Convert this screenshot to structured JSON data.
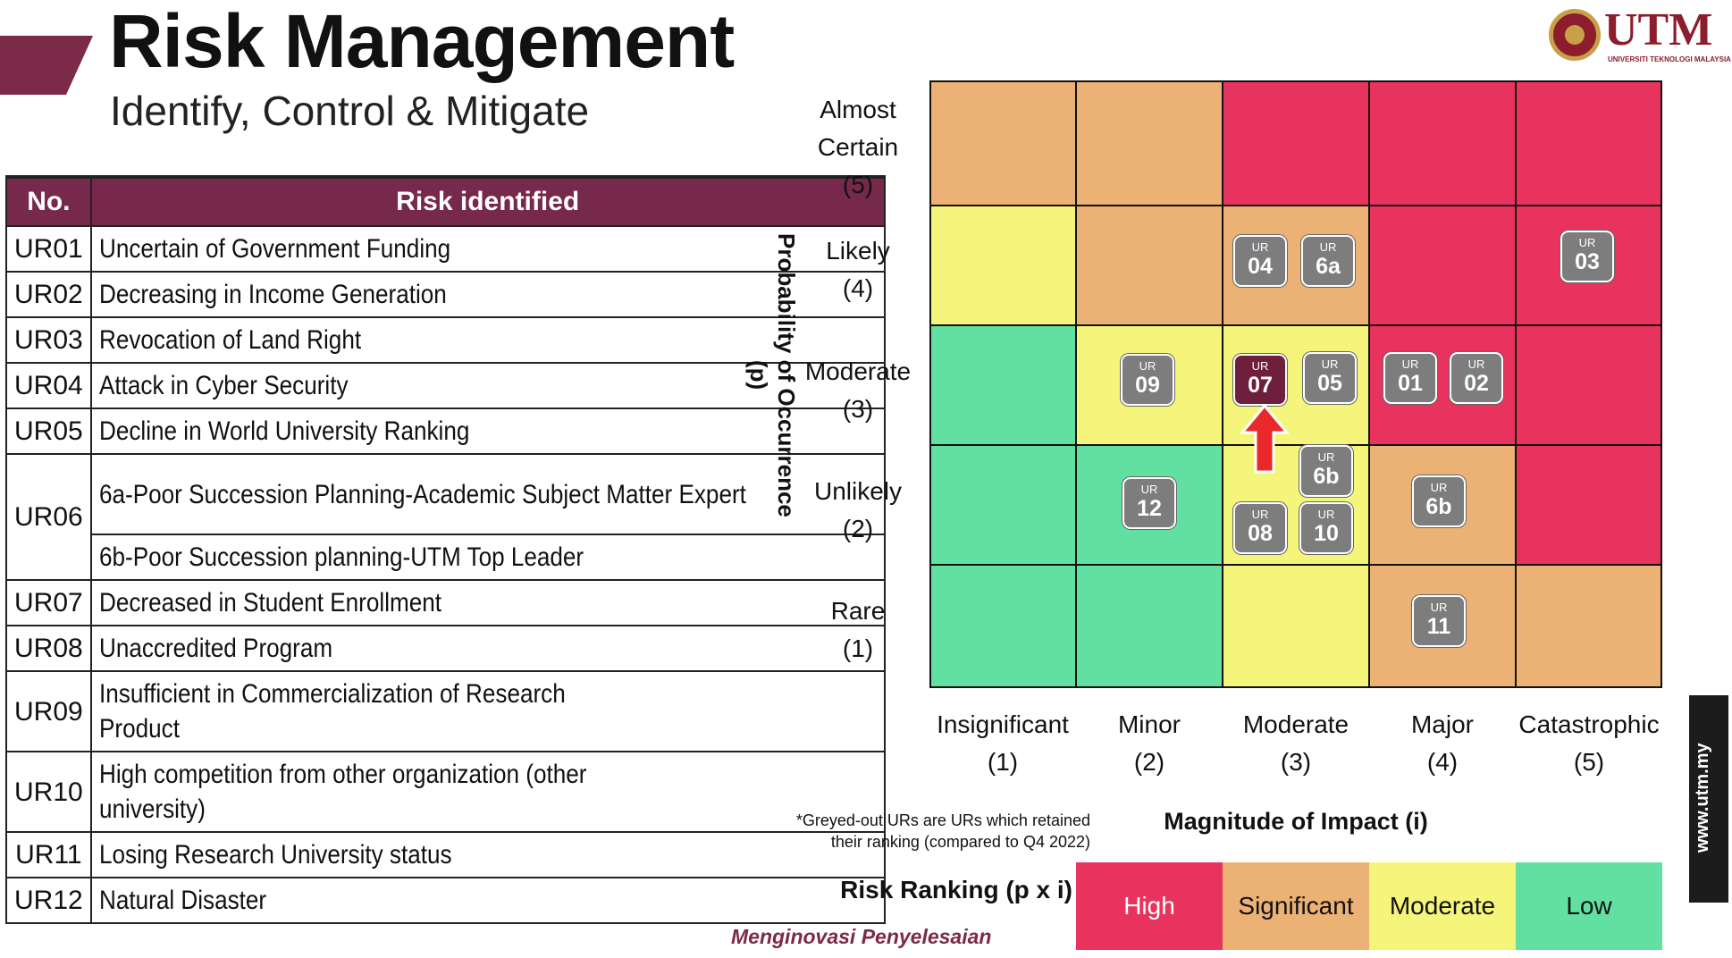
{
  "header": {
    "title": "Risk Management",
    "subtitle": "Identify, Control & Mitigate"
  },
  "logo": {
    "wordmark": "UTM",
    "subtext": "UNIVERSITI TEKNOLOGI MALAYSIA"
  },
  "table": {
    "headers": [
      "No.",
      "Risk identified"
    ],
    "rows": [
      {
        "no": "UR01",
        "desc": "Uncertain of Government Funding"
      },
      {
        "no": "UR02",
        "desc": "Decreasing in Income Generation"
      },
      {
        "no": "UR03",
        "desc": "Revocation of Land Right"
      },
      {
        "no": "UR04",
        "desc": "Attack in Cyber Security"
      },
      {
        "no": "UR05",
        "desc": "Decline in World University Ranking"
      },
      {
        "no": "UR06",
        "desc": "6a-Poor Succession Planning-Academic Subject Matter Expert",
        "desc2": "6b-Poor Succession planning-UTM Top Leader"
      },
      {
        "no": "UR07",
        "desc": "Decreased in Student Enrollment"
      },
      {
        "no": "UR08",
        "desc": "Unaccredited Program"
      },
      {
        "no": "UR09",
        "desc": "Insufficient in Commercialization of Research Product"
      },
      {
        "no": "UR10",
        "desc": "High competition from other organization (other university)"
      },
      {
        "no": "UR11",
        "desc": "Losing Research University status"
      },
      {
        "no": "UR12",
        "desc": "Natural Disaster"
      }
    ]
  },
  "matrix": {
    "y_axis_title": "Probability of Occurrence (p)",
    "x_axis_title": "Magnitude of Impact (i)",
    "y_levels": [
      {
        "label": "Almost Certain",
        "value": "(5)"
      },
      {
        "label": "Likely",
        "value": "(4)"
      },
      {
        "label": "Moderate",
        "value": "(3)"
      },
      {
        "label": "Unlikely",
        "value": "(2)"
      },
      {
        "label": "Rare",
        "value": "(1)"
      }
    ],
    "x_levels": [
      {
        "label": "Insignificant",
        "value": "(1)"
      },
      {
        "label": "Minor",
        "value": "(2)"
      },
      {
        "label": "Moderate",
        "value": "(3)"
      },
      {
        "label": "Major",
        "value": "(4)"
      },
      {
        "label": "Catastrophic",
        "value": "(5)"
      }
    ],
    "colors": {
      "high": "#e8335e",
      "significant": "#ebb175",
      "moderate": "#f5f57b",
      "low": "#62e0a2",
      "badge": "#7d7d7d",
      "badge_current": "#6e1f3b",
      "arrow": "#e8282a"
    },
    "grid_rows_top_to_bottom": [
      [
        "significant",
        "significant",
        "high",
        "high",
        "high"
      ],
      [
        "moderate",
        "significant",
        "significant",
        "high",
        "high"
      ],
      [
        "low",
        "moderate",
        "moderate",
        "high",
        "high"
      ],
      [
        "low",
        "low",
        "moderate",
        "significant",
        "high"
      ],
      [
        "low",
        "low",
        "moderate",
        "significant",
        "significant"
      ]
    ],
    "badges": [
      {
        "prefix": "UR",
        "id": "04",
        "p": 4,
        "i": 3
      },
      {
        "prefix": "UR",
        "id": "6a",
        "p": 4,
        "i": 3
      },
      {
        "prefix": "UR",
        "id": "03",
        "p": 4,
        "i": 5
      },
      {
        "prefix": "UR",
        "id": "09",
        "p": 3,
        "i": 2
      },
      {
        "prefix": "UR",
        "id": "07",
        "p": 3,
        "i": 3,
        "current": true
      },
      {
        "prefix": "UR",
        "id": "05",
        "p": 3,
        "i": 3
      },
      {
        "prefix": "UR",
        "id": "01",
        "p": 3,
        "i": 4
      },
      {
        "prefix": "UR",
        "id": "02",
        "p": 3,
        "i": 4
      },
      {
        "prefix": "UR",
        "id": "12",
        "p": 2,
        "i": 2
      },
      {
        "prefix": "UR",
        "id": "6b",
        "p": 2,
        "i": 3
      },
      {
        "prefix": "UR",
        "id": "08",
        "p": 2,
        "i": 3
      },
      {
        "prefix": "UR",
        "id": "10",
        "p": 2,
        "i": 3
      },
      {
        "prefix": "UR",
        "id": "6b",
        "p": 2,
        "i": 4
      },
      {
        "prefix": "UR",
        "id": "11",
        "p": 1,
        "i": 4
      }
    ],
    "note": "*Greyed-out URs are URs which retained their ranking (compared to Q4 2022)"
  },
  "legend": {
    "label": "Risk Ranking (p x i)",
    "items": [
      "High",
      "Significant",
      "Moderate",
      "Low"
    ]
  },
  "footer": {
    "tagline": "Menginovasi Penyelesaian",
    "site": "www.utm.my"
  }
}
